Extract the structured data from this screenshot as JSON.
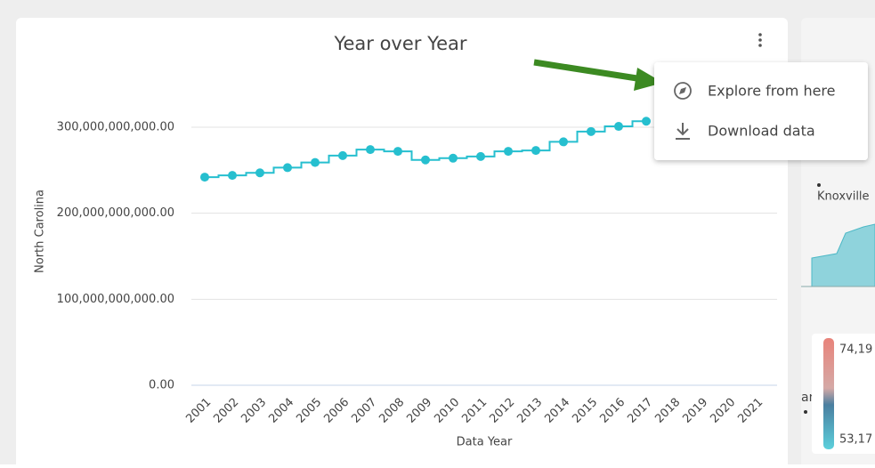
{
  "chart_data": {
    "type": "step-line",
    "title": "Year over Year",
    "x_label": "Data Year",
    "y_label": "North Carolina",
    "categories": [
      "2001",
      "2002",
      "2003",
      "2004",
      "2005",
      "2006",
      "2007",
      "2008",
      "2009",
      "2010",
      "2011",
      "2012",
      "2013",
      "2014",
      "2015",
      "2016",
      "2017",
      "2018",
      "2019",
      "2020",
      "2021"
    ],
    "series": [
      {
        "name": "North Carolina",
        "color": "#26bfcf",
        "values": [
          242000000000,
          244000000000,
          247000000000,
          253000000000,
          259000000000,
          267000000000,
          274000000000,
          272000000000,
          262000000000,
          264000000000,
          266000000000,
          272000000000,
          273000000000,
          283000000000,
          295000000000,
          301000000000,
          307000000000,
          null,
          null,
          null,
          null
        ]
      }
    ],
    "ylim": [
      0,
      330000000000
    ],
    "yticks": [
      {
        "value": 0,
        "label": "0.00"
      },
      {
        "value": 100000000000,
        "label": "100,000,000,000.00"
      },
      {
        "value": 200000000000,
        "label": "200,000,000,000.00"
      },
      {
        "value": 300000000000,
        "label": "300,000,000,000.00"
      }
    ],
    "grid": true
  },
  "menu": {
    "items": [
      "Explore from here",
      "Download data"
    ]
  },
  "map": {
    "labels": [
      "Knoxville",
      "anta"
    ],
    "legend_labels": [
      "74,19",
      "53,17"
    ]
  }
}
